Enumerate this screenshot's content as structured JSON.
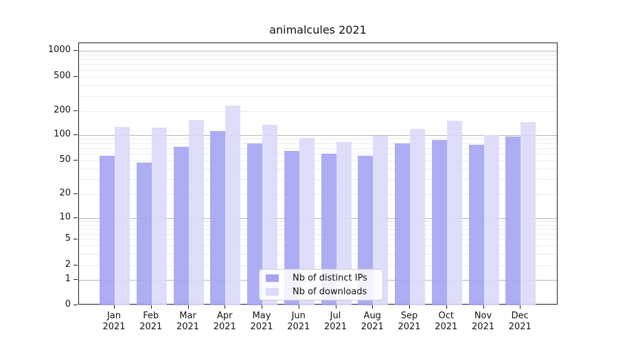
{
  "chart_data": {
    "type": "bar",
    "title": "animalcules 2021",
    "categories": [
      "Jan 2021",
      "Feb 2021",
      "Mar 2021",
      "Apr 2021",
      "May 2021",
      "Jun 2021",
      "Jul 2021",
      "Aug 2021",
      "Sep 2021",
      "Oct 2021",
      "Nov 2021",
      "Dec 2021"
    ],
    "series": [
      {
        "name": "Nb of distinct IPs",
        "color": "#a4a4f3",
        "values": [
          57,
          47,
          73,
          113,
          80,
          65,
          60,
          57,
          79,
          87,
          76,
          96
        ]
      },
      {
        "name": "Nb of downloads",
        "color": "#dadaf9",
        "values": [
          127,
          124,
          155,
          230,
          133,
          93,
          83,
          97,
          120,
          152,
          99,
          145
        ]
      }
    ],
    "xlabel": "",
    "ylabel": "",
    "yscale": "symlog",
    "yticks": [
      0,
      1,
      2,
      5,
      10,
      20,
      50,
      100,
      200,
      500,
      1000
    ],
    "ylim": [
      0,
      1400
    ],
    "grid": true,
    "legend_position": "lower center",
    "major_grid_color": "#b4b4b4",
    "minor_grid_color": "#ebebeb",
    "axis_color": "#1a1a1a",
    "text_color": "#111111"
  }
}
